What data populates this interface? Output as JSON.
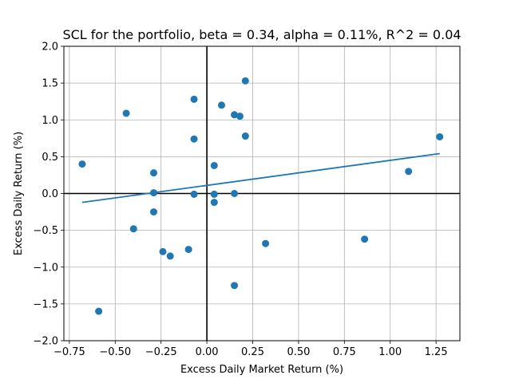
{
  "chart_data": {
    "type": "scatter",
    "title": "SCL for the portfolio, beta = 0.34, alpha = 0.11%, R^2 = 0.04",
    "xlabel": "Excess Daily Market Return (%)",
    "ylabel": "Excess Daily Return (%)",
    "xlim": [
      -0.78,
      1.38
    ],
    "ylim": [
      -2.0,
      2.0
    ],
    "xticks": [
      -0.75,
      -0.5,
      -0.25,
      0.0,
      0.25,
      0.5,
      0.75,
      1.0,
      1.25
    ],
    "xtick_labels": [
      "−0.75",
      "−0.50",
      "−0.25",
      "0.00",
      "0.25",
      "0.50",
      "0.75",
      "1.00",
      "1.25"
    ],
    "yticks": [
      -2.0,
      -1.5,
      -1.0,
      -0.5,
      0.0,
      0.5,
      1.0,
      1.5,
      2.0
    ],
    "ytick_labels": [
      "−2.0",
      "−1.5",
      "−1.0",
      "−0.5",
      "0.0",
      "0.5",
      "1.0",
      "1.5",
      "2.0"
    ],
    "grid": true,
    "marker_color": "#1f77b4",
    "points": [
      {
        "x": -0.68,
        "y": 0.4
      },
      {
        "x": -0.59,
        "y": -1.6
      },
      {
        "x": -0.44,
        "y": 1.09
      },
      {
        "x": -0.4,
        "y": -0.48
      },
      {
        "x": -0.29,
        "y": 0.28
      },
      {
        "x": -0.29,
        "y": 0.01
      },
      {
        "x": -0.29,
        "y": -0.25
      },
      {
        "x": -0.24,
        "y": -0.79
      },
      {
        "x": -0.2,
        "y": -0.85
      },
      {
        "x": -0.1,
        "y": -0.76
      },
      {
        "x": -0.07,
        "y": 1.28
      },
      {
        "x": -0.07,
        "y": 0.74
      },
      {
        "x": -0.07,
        "y": -0.01
      },
      {
        "x": 0.04,
        "y": 0.38
      },
      {
        "x": 0.04,
        "y": -0.01
      },
      {
        "x": 0.04,
        "y": -0.12
      },
      {
        "x": 0.08,
        "y": 1.2
      },
      {
        "x": 0.15,
        "y": 1.07
      },
      {
        "x": 0.15,
        "y": 0.0
      },
      {
        "x": 0.15,
        "y": -1.25
      },
      {
        "x": 0.18,
        "y": 1.05
      },
      {
        "x": 0.21,
        "y": 1.53
      },
      {
        "x": 0.21,
        "y": 0.78
      },
      {
        "x": 0.32,
        "y": -0.68
      },
      {
        "x": 0.86,
        "y": -0.62
      },
      {
        "x": 1.1,
        "y": 0.3
      },
      {
        "x": 1.27,
        "y": 0.77
      }
    ],
    "regression_line": {
      "x": [
        -0.68,
        1.27
      ],
      "y": [
        -0.121,
        0.542
      ],
      "color": "#1f77b4"
    },
    "reference_lines": {
      "x": 0,
      "y": 0,
      "color": "#000000"
    }
  }
}
